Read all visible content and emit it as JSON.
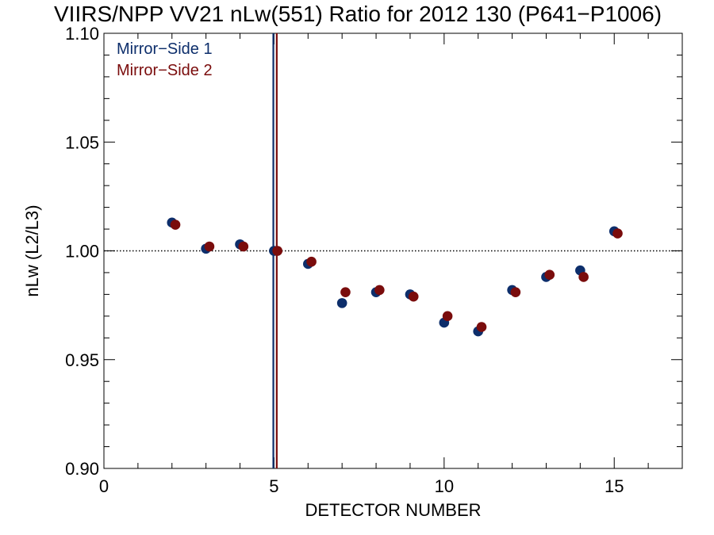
{
  "chart_data": {
    "type": "scatter",
    "title": "VIIRS/NPP VV21 nLw(551) Ratio for 2012 130 (P641−P1006)",
    "xlabel": "DETECTOR NUMBER",
    "ylabel": "nLw (L2/L3)",
    "xlim": [
      0,
      17
    ],
    "ylim": [
      0.9,
      1.1
    ],
    "x_ticks": [
      0,
      5,
      10,
      15
    ],
    "x_tick_labels": [
      "0",
      "5",
      "10",
      "15"
    ],
    "y_ticks": [
      0.9,
      0.95,
      1.0,
      1.05,
      1.1
    ],
    "y_tick_labels": [
      "0.90",
      "0.95",
      "1.00",
      "1.05",
      "1.10"
    ],
    "reference_line": {
      "y": 1.0,
      "style": "dotted"
    },
    "vertical_lines": [
      {
        "x": 4.98,
        "color": "#0d2e6b"
      },
      {
        "x": 5.08,
        "color": "#7a0c0c"
      }
    ],
    "legend_placement": "top-left",
    "series": [
      {
        "name": "Mirror−Side 1",
        "color": "#0d2e6b",
        "x": [
          2,
          3,
          4,
          5,
          6,
          7,
          8,
          9,
          10,
          11,
          12,
          13,
          14,
          15
        ],
        "y": [
          1.013,
          1.001,
          1.003,
          1.0,
          0.994,
          0.976,
          0.981,
          0.98,
          0.967,
          0.963,
          0.982,
          0.988,
          0.991,
          1.009
        ]
      },
      {
        "name": "Mirror−Side 2",
        "color": "#7a0c0c",
        "x": [
          2.1,
          3.1,
          4.1,
          5.1,
          6.1,
          7.1,
          8.1,
          9.1,
          10.1,
          11.1,
          12.1,
          13.1,
          14.1,
          15.1
        ],
        "y": [
          1.012,
          1.002,
          1.002,
          1.0,
          0.995,
          0.981,
          0.982,
          0.979,
          0.97,
          0.965,
          0.981,
          0.989,
          0.988,
          1.008
        ]
      }
    ]
  }
}
